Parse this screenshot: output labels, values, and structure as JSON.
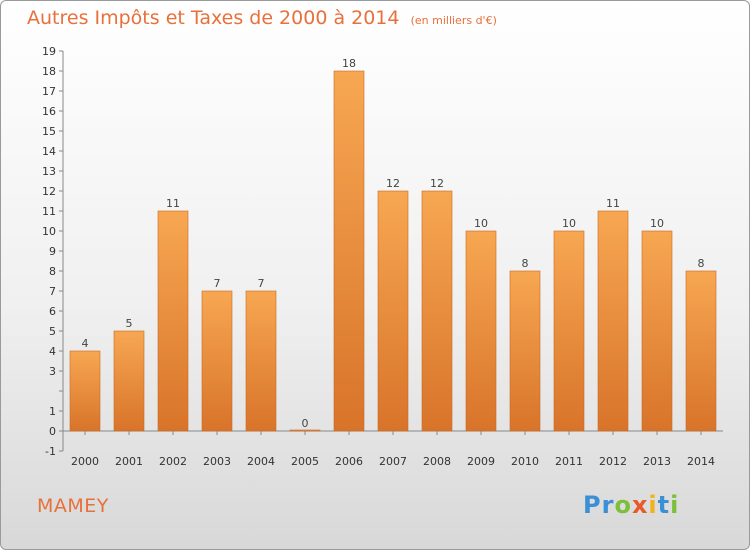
{
  "header": {
    "title": "Autres Impôts et Taxes de 2000 à 2014",
    "subtitle": "(en milliers d'€)"
  },
  "footer": {
    "commune": "MAMEY",
    "logo_letters": [
      {
        "ch": "P",
        "color": "#3a8fd6"
      },
      {
        "ch": "r",
        "color": "#3a8fd6"
      },
      {
        "ch": "o",
        "color": "#7cbf3a"
      },
      {
        "ch": "x",
        "color": "#e85a2a"
      },
      {
        "ch": "i",
        "color": "#f2b21c"
      },
      {
        "ch": "t",
        "color": "#3a8fd6"
      },
      {
        "ch": "i",
        "color": "#7cbf3a"
      }
    ]
  },
  "colors": {
    "bar_light": "#f7a752",
    "bar_dark": "#d8742a",
    "accent": "#e8703a"
  },
  "chart_data": {
    "type": "bar",
    "title": "Autres Impôts et Taxes de 2000 à 2014",
    "subtitle": "(en milliers d'€)",
    "xlabel": "",
    "ylabel": "",
    "categories": [
      "2000",
      "2001",
      "2002",
      "2003",
      "2004",
      "2005",
      "2006",
      "2007",
      "2008",
      "2009",
      "2010",
      "2011",
      "2012",
      "2013",
      "2014"
    ],
    "values": [
      4,
      5,
      11,
      7,
      7,
      0,
      18,
      12,
      12,
      10,
      8,
      10,
      11,
      10,
      8
    ],
    "ylim": [
      -1,
      19
    ],
    "yticks": [
      {
        "value": -1,
        "label": "-1"
      },
      {
        "value": 0,
        "label": "0"
      },
      {
        "value": 1,
        "label": "1"
      },
      {
        "value": 3,
        "label": "3"
      },
      {
        "value": 4,
        "label": "4"
      },
      {
        "value": 5,
        "label": "5"
      },
      {
        "value": 6,
        "label": "6"
      },
      {
        "value": 7,
        "label": "7"
      },
      {
        "value": 8,
        "label": "8"
      },
      {
        "value": 9,
        "label": "9"
      },
      {
        "value": 10,
        "label": "10"
      },
      {
        "value": 11,
        "label": "11"
      },
      {
        "value": 12,
        "label": "12"
      },
      {
        "value": 13,
        "label": "13"
      },
      {
        "value": 14,
        "label": "14"
      },
      {
        "value": 15,
        "label": "15"
      },
      {
        "value": 16,
        "label": "16"
      },
      {
        "value": 17,
        "label": "17"
      },
      {
        "value": 18,
        "label": "18"
      },
      {
        "value": 19,
        "label": "19"
      }
    ],
    "grid": false,
    "legend": "none"
  }
}
